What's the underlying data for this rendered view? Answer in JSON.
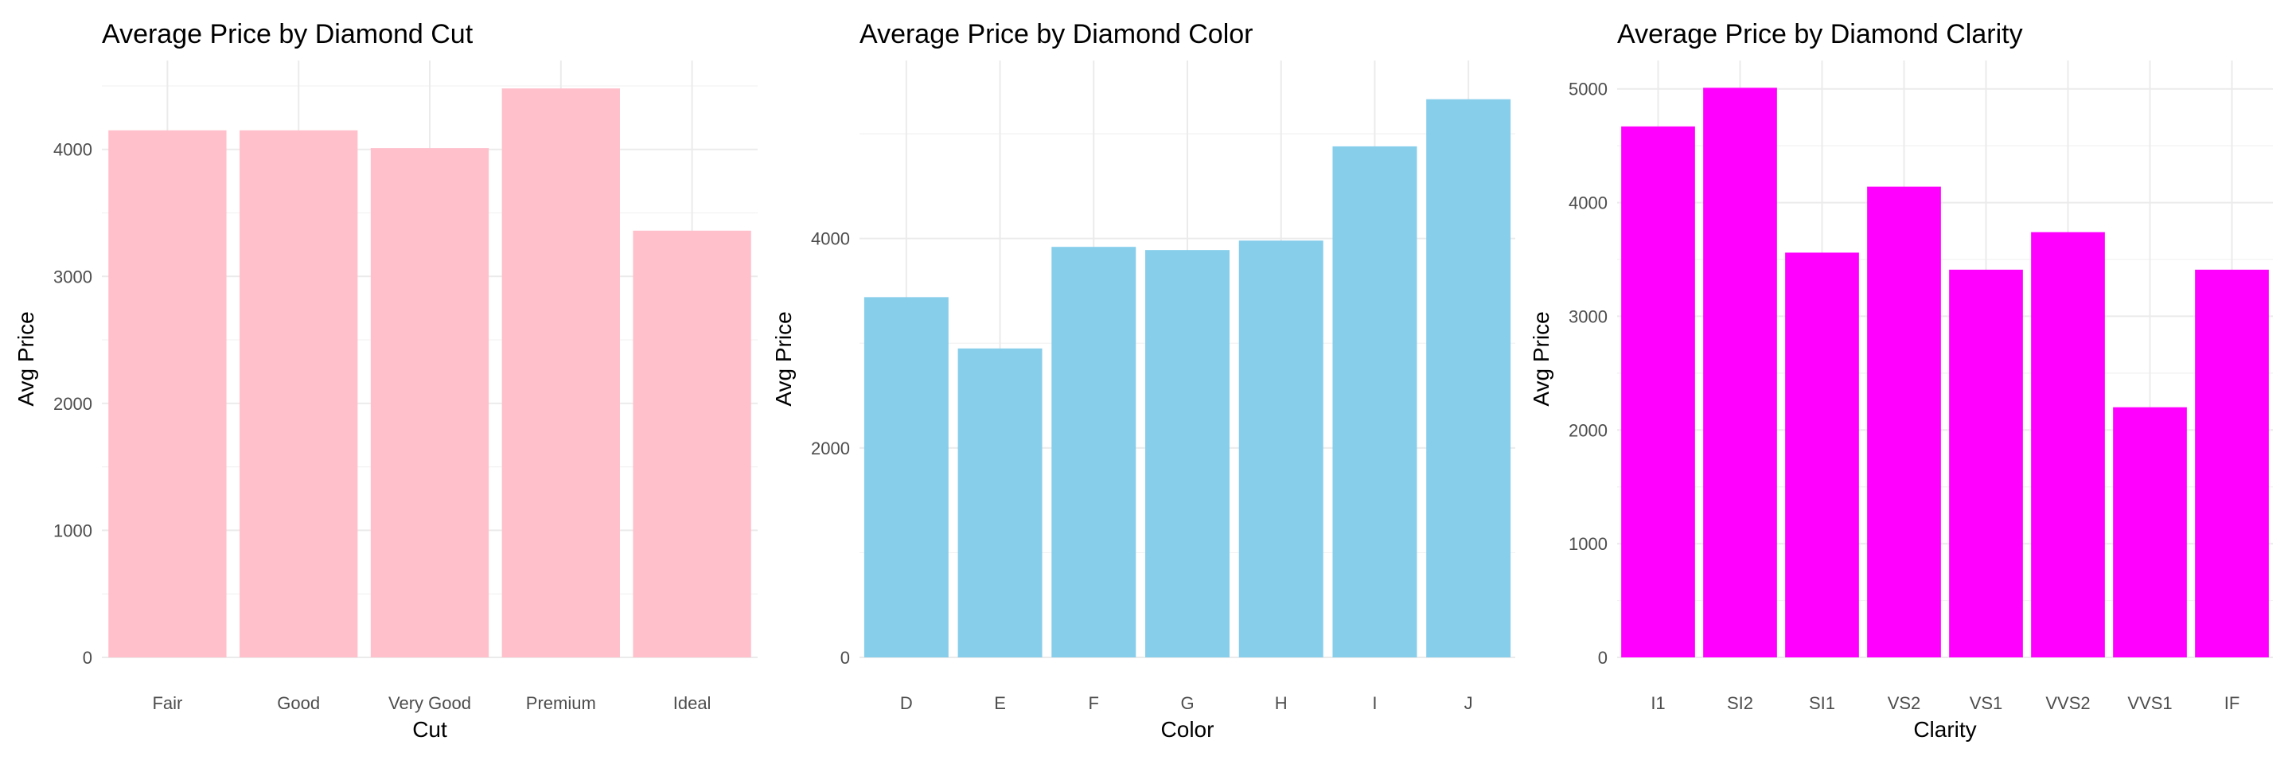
{
  "chart_data": [
    {
      "type": "bar",
      "title": "Average Price by Diamond Cut",
      "xlabel": "Cut",
      "ylabel": "Avg Price",
      "categories": [
        "Fair",
        "Good",
        "Very Good",
        "Premium",
        "Ideal"
      ],
      "values": [
        4150,
        4150,
        4010,
        4480,
        3360
      ],
      "ylim": [
        0,
        4700
      ],
      "yticks": [
        0,
        1000,
        2000,
        3000,
        4000
      ],
      "ytick_labels": [
        "0",
        "1000",
        "2000",
        "3000",
        "4000"
      ],
      "bar_color": "#ffc0cb",
      "grid": true
    },
    {
      "type": "bar",
      "title": "Average Price by Diamond Color",
      "xlabel": "Color",
      "ylabel": "Avg Price",
      "categories": [
        "D",
        "E",
        "F",
        "G",
        "H",
        "I",
        "J"
      ],
      "values": [
        3440,
        2950,
        3920,
        3890,
        3980,
        4880,
        5330
      ],
      "ylim": [
        0,
        5700
      ],
      "yticks": [
        0,
        2000,
        4000
      ],
      "ytick_labels": [
        "0",
        "2000",
        "4000"
      ],
      "bar_color": "#87ceeb",
      "grid": true
    },
    {
      "type": "bar",
      "title": "Average Price by Diamond Clarity",
      "xlabel": "Clarity",
      "ylabel": "Avg Price",
      "categories": [
        "I1",
        "SI2",
        "SI1",
        "VS2",
        "VS1",
        "VVS2",
        "VVS1",
        "IF"
      ],
      "values": [
        4670,
        5010,
        3560,
        4140,
        3410,
        3740,
        2200,
        3410
      ],
      "ylim": [
        0,
        5250
      ],
      "yticks": [
        0,
        1000,
        2000,
        3000,
        4000,
        5000
      ],
      "ytick_labels": [
        "0",
        "1000",
        "2000",
        "3000",
        "4000",
        "5000"
      ],
      "bar_color": "#ff00ff",
      "grid": true
    }
  ]
}
